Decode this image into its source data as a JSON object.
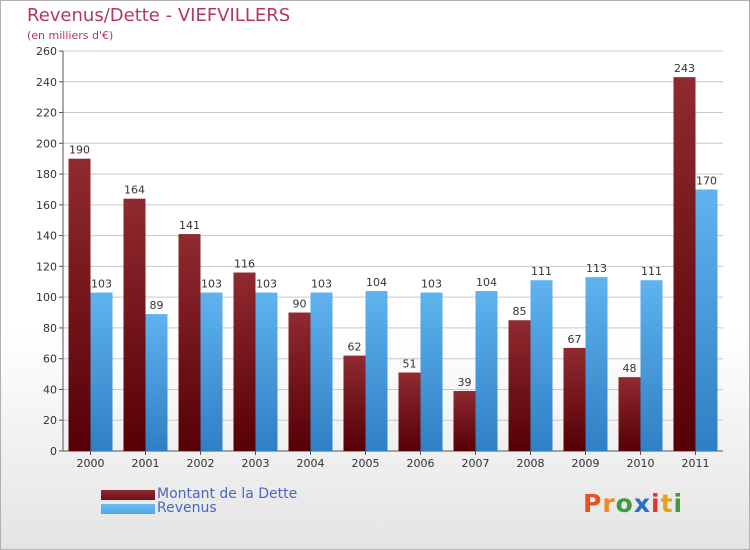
{
  "chart_data": {
    "type": "bar",
    "title": "Revenus/Dette - VIEFVILLERS",
    "subtitle": "(en milliers d'€)",
    "categories": [
      "2000",
      "2001",
      "2002",
      "2003",
      "2004",
      "2005",
      "2006",
      "2007",
      "2008",
      "2009",
      "2010",
      "2011"
    ],
    "series": [
      {
        "name": "Montant de la Dette",
        "color": "#6b1218",
        "values": [
          190,
          164,
          141,
          116,
          90,
          62,
          51,
          39,
          85,
          67,
          48,
          243
        ]
      },
      {
        "name": "Revenus",
        "color": "#4ea6e8",
        "values": [
          103,
          89,
          103,
          103,
          103,
          104,
          103,
          104,
          111,
          113,
          111,
          170
        ]
      }
    ],
    "ylim": [
      0,
      260
    ],
    "yticks": [
      0,
      20,
      40,
      60,
      80,
      100,
      120,
      140,
      160,
      180,
      200,
      220,
      240,
      260
    ],
    "grid": true,
    "legend_position": "bottom-left"
  },
  "logo": {
    "letters": [
      "P",
      "r",
      "o",
      "x",
      "i",
      "t",
      "i"
    ],
    "colors": [
      "#e8521c",
      "#f08a1e",
      "#3d9b3d",
      "#2b6fc7",
      "#d93a2b",
      "#e6a11f",
      "#3d9b3d"
    ]
  }
}
